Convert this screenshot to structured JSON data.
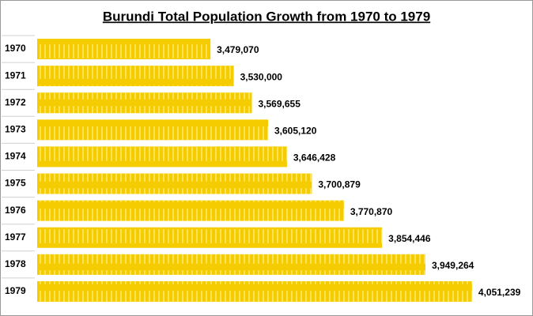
{
  "chart_data": {
    "type": "hbar",
    "title": "Burundi  Total Population Growth from 1970 to 1979",
    "categories": [
      "1970",
      "1971",
      "1972",
      "1973",
      "1974",
      "1975",
      "1976",
      "1977",
      "1978",
      "1979"
    ],
    "values": [
      3479070,
      3530000,
      3569655,
      3605120,
      3646428,
      3700879,
      3770870,
      3854446,
      3949264,
      4051239
    ],
    "value_labels": [
      "3,479,070",
      "3,530,000",
      "3,569,655",
      "3,605,120",
      "3,646,428",
      "3,700,879",
      "3,770,870",
      "3,854,446",
      "3,949,264",
      "4,051,239"
    ],
    "color": "#f5cc00",
    "xlim": [
      3100000,
      4150000
    ]
  }
}
